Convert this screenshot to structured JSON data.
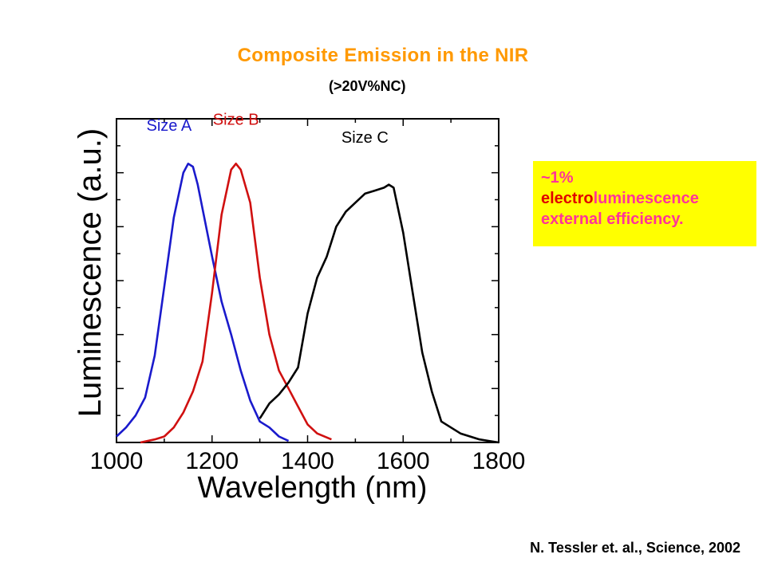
{
  "slide": {
    "title": "Composite Emission in the NIR",
    "title_color": "#ff9900",
    "subtitle": "(>20V%NC)",
    "note": {
      "line1": "~1%",
      "line2_a": "electro",
      "line2_b": "luminescence",
      "line3": "external efficiency.",
      "bg_color": "#ffff00",
      "pink_color": "#ff3399",
      "red_color": "#e00000"
    },
    "citation": "N. Tessler et. al., Science, 2002"
  },
  "chart_data": {
    "type": "line",
    "xlabel": "Wavelength (nm)",
    "ylabel": "Luminescence (a.u.)",
    "xlim": [
      1000,
      1800
    ],
    "ylim": [
      0,
      1.0
    ],
    "x_ticks": [
      1000,
      1200,
      1400,
      1600,
      1800
    ],
    "x_tick_labels": [
      "1000",
      "1200",
      "1400",
      "1600",
      "1800"
    ],
    "grid": false,
    "series": [
      {
        "name": "Size A",
        "color": "#1a1acc",
        "x": [
          1000,
          1020,
          1040,
          1060,
          1080,
          1100,
          1120,
          1140,
          1150,
          1160,
          1170,
          1180,
          1200,
          1220,
          1240,
          1260,
          1280,
          1300,
          1320,
          1340,
          1360
        ],
        "y": [
          0.02,
          0.05,
          0.09,
          0.15,
          0.29,
          0.52,
          0.75,
          0.9,
          0.93,
          0.92,
          0.86,
          0.78,
          0.62,
          0.47,
          0.36,
          0.24,
          0.14,
          0.07,
          0.05,
          0.02,
          0.005
        ]
      },
      {
        "name": "Size B",
        "color": "#d01010",
        "x": [
          1050,
          1080,
          1100,
          1120,
          1140,
          1160,
          1180,
          1200,
          1220,
          1240,
          1250,
          1260,
          1280,
          1300,
          1320,
          1340,
          1360,
          1380,
          1400,
          1420,
          1450
        ],
        "y": [
          0.0,
          0.01,
          0.02,
          0.05,
          0.1,
          0.17,
          0.27,
          0.5,
          0.76,
          0.91,
          0.93,
          0.91,
          0.8,
          0.55,
          0.36,
          0.24,
          0.18,
          0.12,
          0.06,
          0.03,
          0.01
        ]
      },
      {
        "name": "Size C",
        "color": "#000000",
        "x": [
          1300,
          1320,
          1340,
          1360,
          1380,
          1400,
          1420,
          1440,
          1460,
          1480,
          1500,
          1520,
          1540,
          1560,
          1570,
          1580,
          1600,
          1620,
          1640,
          1660,
          1680,
          1700,
          1720,
          1740,
          1760,
          1780,
          1800
        ],
        "y": [
          0.08,
          0.13,
          0.16,
          0.2,
          0.25,
          0.43,
          0.55,
          0.62,
          0.72,
          0.77,
          0.8,
          0.83,
          0.84,
          0.85,
          0.86,
          0.85,
          0.7,
          0.5,
          0.3,
          0.17,
          0.07,
          0.05,
          0.03,
          0.02,
          0.01,
          0.005,
          0.0
        ]
      }
    ]
  }
}
